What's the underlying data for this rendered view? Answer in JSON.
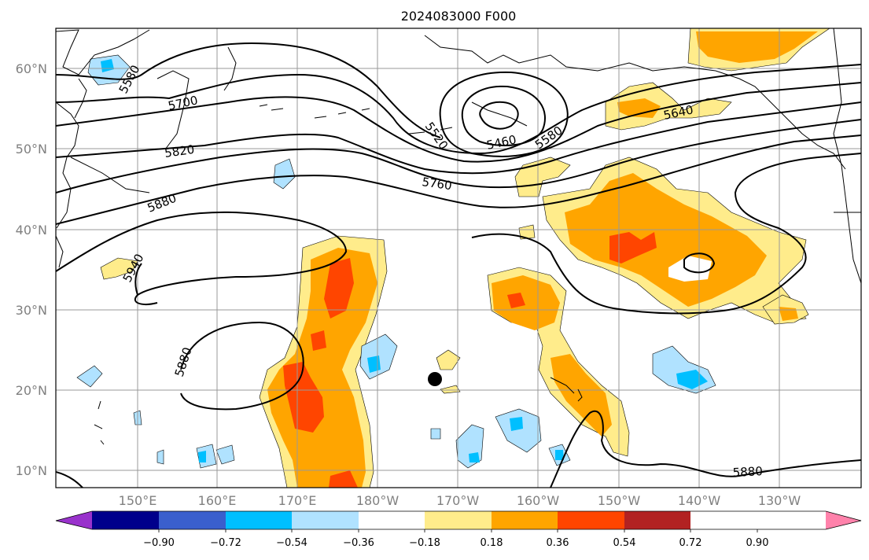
{
  "title": "2024083000 F000",
  "map": {
    "lat_labels": [
      "60°N",
      "50°N",
      "40°N",
      "30°N",
      "20°N",
      "10°N"
    ],
    "lon_labels": [
      "150°E",
      "160°E",
      "170°E",
      "180°W",
      "170°W",
      "160°W",
      "150°W",
      "140°W",
      "130°W"
    ],
    "contour_labels": [
      "5580",
      "5700",
      "5820",
      "5880",
      "5940",
      "5880",
      "5520",
      "5460",
      "5580",
      "5760",
      "5640",
      "5880"
    ],
    "marker": "station-dot"
  },
  "colorbar": {
    "colors": [
      "#9932cc",
      "#00008b",
      "#3a5fcd",
      "#00bfff",
      "#b0e2ff",
      "#ffffff",
      "#ffec8b",
      "#ffa500",
      "#ff4500",
      "#b22222",
      "#ff82ab"
    ],
    "ticks": [
      "−0.90",
      "−0.72",
      "−0.54",
      "−0.36",
      "−0.18",
      "0.18",
      "0.36",
      "0.54",
      "0.72",
      "0.90"
    ]
  }
}
